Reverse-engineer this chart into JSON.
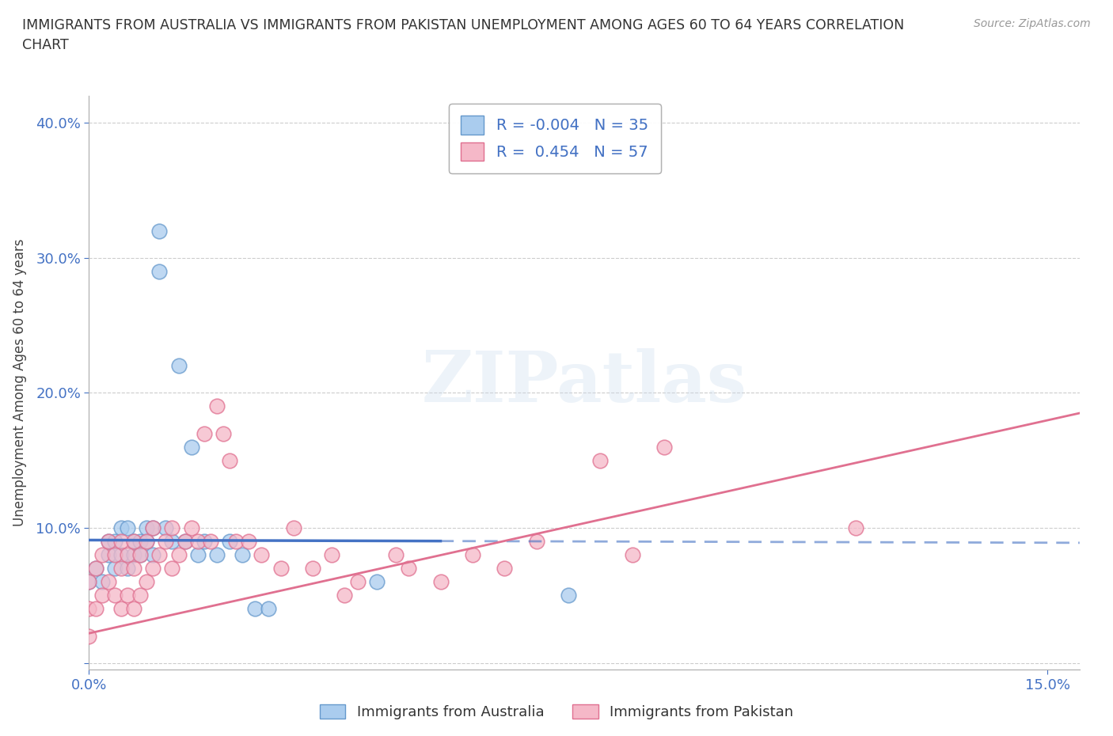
{
  "title": "IMMIGRANTS FROM AUSTRALIA VS IMMIGRANTS FROM PAKISTAN UNEMPLOYMENT AMONG AGES 60 TO 64 YEARS CORRELATION\nCHART",
  "source": "Source: ZipAtlas.com",
  "ylabel": "Unemployment Among Ages 60 to 64 years",
  "xlim": [
    0.0,
    0.155
  ],
  "ylim": [
    -0.005,
    0.42
  ],
  "x_ticks": [
    0.0,
    0.15
  ],
  "x_tick_labels": [
    "0.0%",
    "15.0%"
  ],
  "y_ticks": [
    0.0,
    0.1,
    0.2,
    0.3,
    0.4
  ],
  "y_tick_labels": [
    "",
    "10.0%",
    "20.0%",
    "30.0%",
    "40.0%"
  ],
  "grid_color": "#cccccc",
  "background_color": "#ffffff",
  "australia_color": "#aaccee",
  "australia_edge_color": "#6699cc",
  "pakistan_color": "#f5b8c8",
  "pakistan_edge_color": "#e07090",
  "australia_R": -0.004,
  "australia_N": 35,
  "pakistan_R": 0.454,
  "pakistan_N": 57,
  "australia_line_color": "#4472c4",
  "australia_line_dash_color": "#99aacc",
  "pakistan_line_color": "#e07090",
  "aus_line_y0": 0.091,
  "aus_line_y1": 0.089,
  "aus_line_solid_x1": 0.055,
  "pak_line_y0": 0.022,
  "pak_line_y1": 0.185,
  "australia_x": [
    0.0,
    0.001,
    0.002,
    0.003,
    0.003,
    0.004,
    0.004,
    0.005,
    0.005,
    0.006,
    0.006,
    0.007,
    0.007,
    0.008,
    0.008,
    0.009,
    0.009,
    0.01,
    0.01,
    0.011,
    0.011,
    0.012,
    0.013,
    0.014,
    0.015,
    0.016,
    0.017,
    0.018,
    0.02,
    0.022,
    0.024,
    0.026,
    0.028,
    0.045,
    0.075
  ],
  "australia_y": [
    0.06,
    0.07,
    0.06,
    0.08,
    0.09,
    0.07,
    0.09,
    0.08,
    0.1,
    0.07,
    0.1,
    0.08,
    0.09,
    0.08,
    0.09,
    0.09,
    0.1,
    0.1,
    0.08,
    0.32,
    0.29,
    0.1,
    0.09,
    0.22,
    0.09,
    0.16,
    0.08,
    0.09,
    0.08,
    0.09,
    0.08,
    0.04,
    0.04,
    0.06,
    0.05
  ],
  "pakistan_x": [
    0.0,
    0.0,
    0.0,
    0.001,
    0.001,
    0.002,
    0.002,
    0.003,
    0.003,
    0.004,
    0.004,
    0.005,
    0.005,
    0.005,
    0.006,
    0.006,
    0.007,
    0.007,
    0.007,
    0.008,
    0.008,
    0.009,
    0.009,
    0.01,
    0.01,
    0.011,
    0.012,
    0.013,
    0.013,
    0.014,
    0.015,
    0.016,
    0.017,
    0.018,
    0.019,
    0.02,
    0.021,
    0.022,
    0.023,
    0.025,
    0.027,
    0.03,
    0.032,
    0.035,
    0.038,
    0.04,
    0.042,
    0.048,
    0.05,
    0.055,
    0.06,
    0.065,
    0.07,
    0.08,
    0.085,
    0.09,
    0.12
  ],
  "pakistan_y": [
    0.02,
    0.04,
    0.06,
    0.04,
    0.07,
    0.05,
    0.08,
    0.06,
    0.09,
    0.05,
    0.08,
    0.04,
    0.07,
    0.09,
    0.05,
    0.08,
    0.04,
    0.07,
    0.09,
    0.05,
    0.08,
    0.06,
    0.09,
    0.07,
    0.1,
    0.08,
    0.09,
    0.07,
    0.1,
    0.08,
    0.09,
    0.1,
    0.09,
    0.17,
    0.09,
    0.19,
    0.17,
    0.15,
    0.09,
    0.09,
    0.08,
    0.07,
    0.1,
    0.07,
    0.08,
    0.05,
    0.06,
    0.08,
    0.07,
    0.06,
    0.08,
    0.07,
    0.09,
    0.15,
    0.08,
    0.16,
    0.1
  ]
}
